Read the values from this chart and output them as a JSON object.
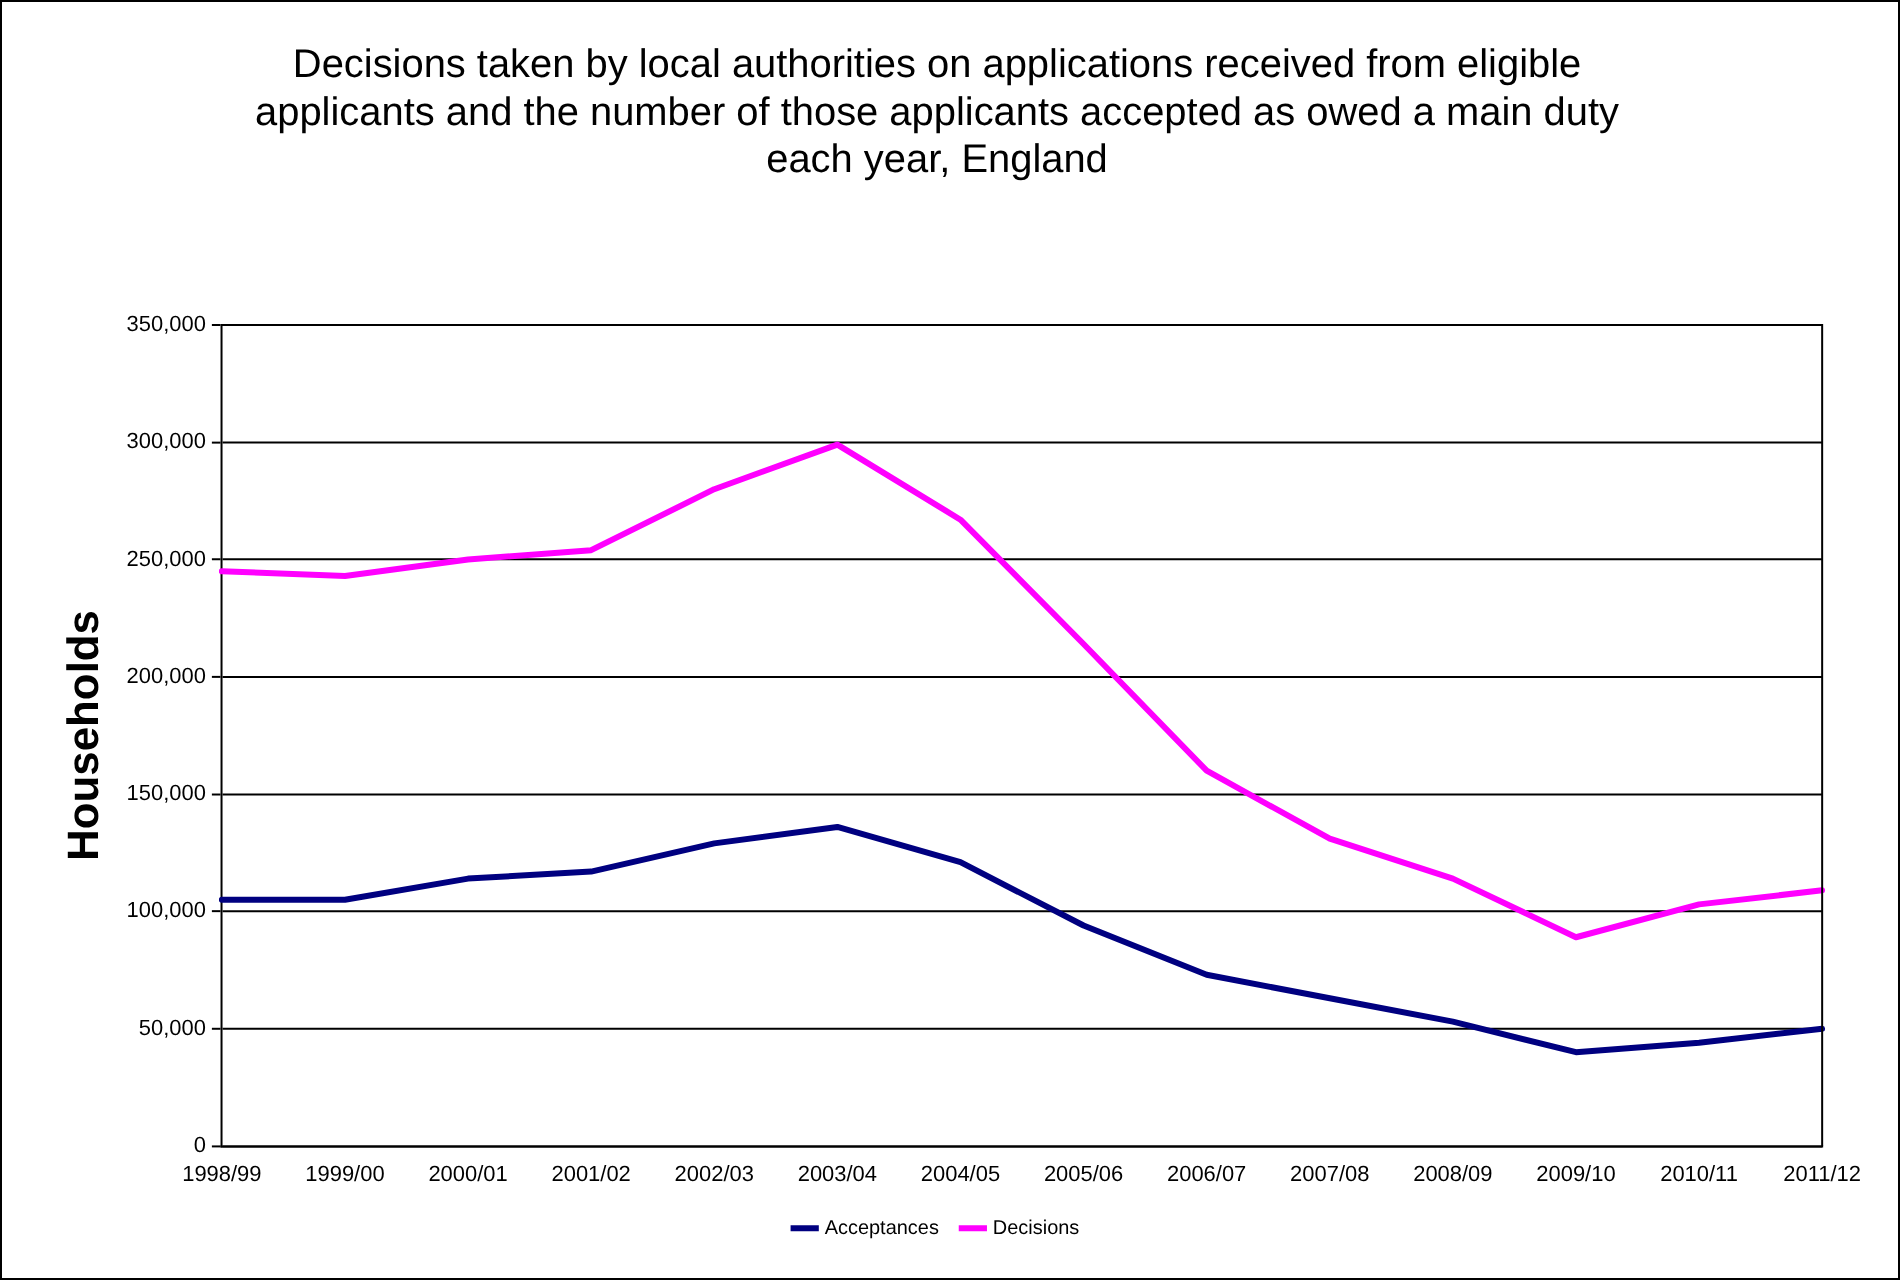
{
  "chart_data": {
    "type": "line",
    "title": "Decisions taken by local authorities on applications received from eligible applicants and the number of those applicants accepted as owed a main duty each year, England",
    "ylabel": "Households",
    "categories": [
      "1998/99",
      "1999/00",
      "2000/01",
      "2001/02",
      "2002/03",
      "2003/04",
      "2004/05",
      "2005/06",
      "2006/07",
      "2007/08",
      "2008/09",
      "2009/10",
      "2010/11",
      "2011/12"
    ],
    "series": [
      {
        "name": "Acceptances",
        "color": "#000080",
        "values": [
          105000,
          105000,
          114000,
          117000,
          129000,
          136000,
          121000,
          94000,
          73000,
          63000,
          53000,
          40000,
          44000,
          50000
        ]
      },
      {
        "name": "Decisions",
        "color": "#ff00ff",
        "values": [
          245000,
          243000,
          250000,
          254000,
          280000,
          299000,
          267000,
          214000,
          160000,
          131000,
          114000,
          89000,
          103000,
          109000
        ]
      }
    ],
    "ylim": [
      0,
      350000
    ],
    "yticks": [
      {
        "value": 0,
        "label": "0"
      },
      {
        "value": 50000,
        "label": "50,000"
      },
      {
        "value": 100000,
        "label": "100,000"
      },
      {
        "value": 150000,
        "label": "150,000"
      },
      {
        "value": 200000,
        "label": "200,000"
      },
      {
        "value": 250000,
        "label": "250,000"
      },
      {
        "value": 300000,
        "label": "300,000"
      },
      {
        "value": 350000,
        "label": "350,000"
      }
    ],
    "grid": "y",
    "legend": "bottom",
    "marker": "none",
    "line_style": "solid"
  }
}
